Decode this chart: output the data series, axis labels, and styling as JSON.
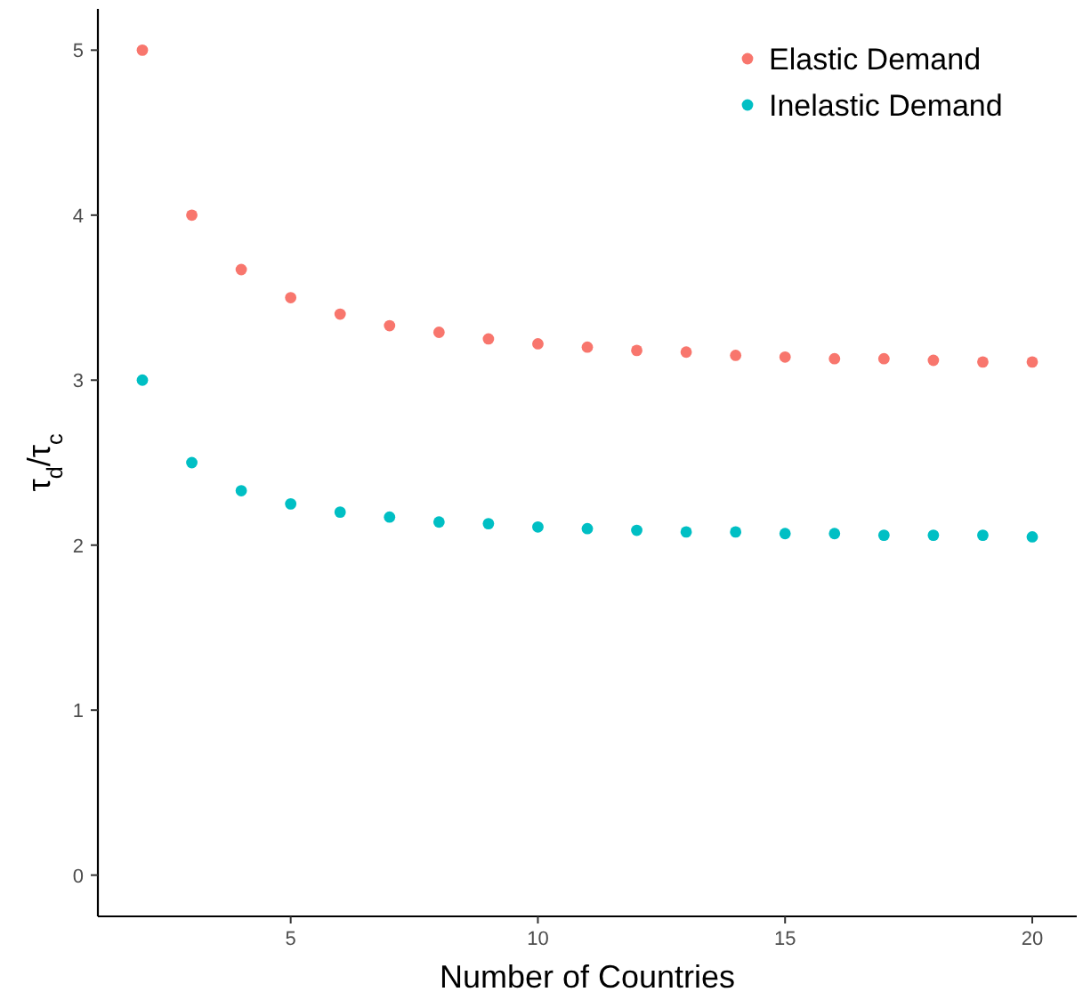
{
  "chart_data": {
    "type": "scatter",
    "xlabel": "Number of Countries",
    "ylabel": "τ$_{d}$/τ$_{c}$",
    "x": [
      2,
      3,
      4,
      5,
      6,
      7,
      8,
      9,
      10,
      11,
      12,
      13,
      14,
      15,
      16,
      17,
      18,
      19,
      20
    ],
    "series": [
      {
        "name": "Elastic Demand",
        "color": "#f8766d",
        "values": [
          5,
          4,
          3.67,
          3.5,
          3.4,
          3.33,
          3.29,
          3.25,
          3.22,
          3.2,
          3.18,
          3.17,
          3.15,
          3.14,
          3.13,
          3.13,
          3.12,
          3.11,
          3.11
        ]
      },
      {
        "name": "Inelastic Demand",
        "color": "#00bfc4",
        "values": [
          3,
          2.5,
          2.33,
          2.25,
          2.2,
          2.17,
          2.14,
          2.13,
          2.11,
          2.1,
          2.09,
          2.08,
          2.08,
          2.07,
          2.07,
          2.06,
          2.06,
          2.06,
          2.05
        ]
      }
    ],
    "xlim": [
      1.1,
      20.9
    ],
    "xticks": [
      5,
      10,
      15,
      20
    ],
    "ylim": [
      -0.25,
      5.25
    ],
    "yticks": [
      0,
      1,
      2,
      3,
      4,
      5
    ],
    "grid": false,
    "legend": "top right",
    "marker": "circle"
  }
}
